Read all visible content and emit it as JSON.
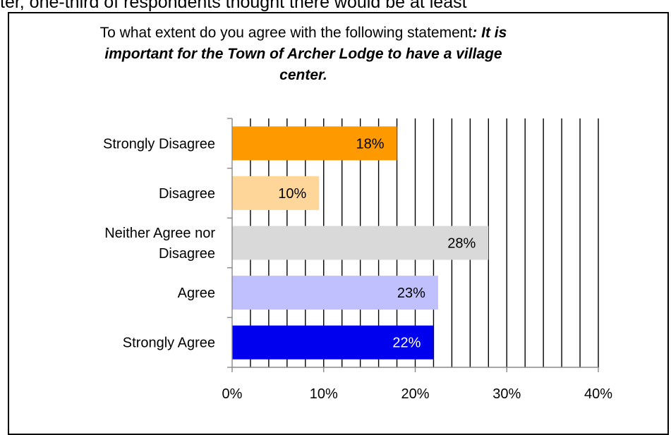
{
  "page": {
    "clipped_line": "ter, one-third of respondents thought there would be at least"
  },
  "chart_data": {
    "type": "bar",
    "orientation": "horizontal",
    "title_plain": "To what extent do you agree with the following statement",
    "title_emphasis": ": It is important for the Town of Archer Lodge to have a village center.",
    "categories": [
      "Strongly Disagree",
      "Disagree",
      "Neither Agree nor Disagree",
      "Agree",
      "Strongly Agree"
    ],
    "values": [
      18,
      9.5,
      28,
      22.5,
      22
    ],
    "value_labels": [
      "18%",
      "10%",
      "28%",
      "23%",
      "22%"
    ],
    "bar_colors": [
      "#FF9900",
      "#FFD699",
      "#D9D9D9",
      "#C0C0FF",
      "#0000EE"
    ],
    "label_colors": [
      "#000000",
      "#000000",
      "#000000",
      "#000000",
      "#ffffff"
    ],
    "xlim": [
      0,
      40
    ],
    "xticks": [
      0,
      10,
      20,
      30,
      40
    ],
    "xtick_labels": [
      "0%",
      "10%",
      "20%",
      "30%",
      "40%"
    ],
    "minor_gridline_step": 2,
    "grid": true
  }
}
